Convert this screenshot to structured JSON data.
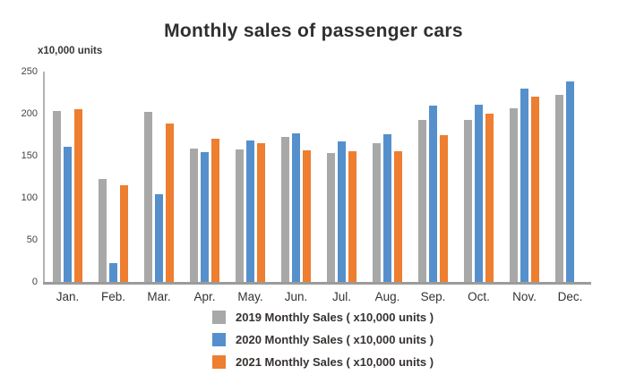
{
  "title": "Monthly sales of passenger cars",
  "y_axis_label": "x10,000 units",
  "colors": {
    "series_2019": "#a8a8a8",
    "series_2020": "#5590cc",
    "series_2021": "#ee7e30",
    "axis_line": "#9b9b9b"
  },
  "chart_data": {
    "type": "bar",
    "title": "Monthly sales of passenger cars",
    "ylabel": "x10,000 units",
    "xlabel": "",
    "categories": [
      "Jan.",
      "Feb.",
      "Mar.",
      "Apr.",
      "May.",
      "Jun.",
      "Jul.",
      "Aug.",
      "Sep.",
      "Oct.",
      "Nov.",
      "Dec."
    ],
    "series": [
      {
        "name": "2019 Monthly Sales ( x10,000 units )",
        "color": "#a8a8a8",
        "values": [
          203,
          122,
          202,
          158,
          157,
          172,
          153,
          165,
          193,
          193,
          206,
          222
        ]
      },
      {
        "name": "2020 Monthly Sales ( x10,000 units )",
        "color": "#5590cc",
        "values": [
          161,
          22,
          104,
          154,
          168,
          177,
          167,
          176,
          210,
          211,
          230,
          238
        ]
      },
      {
        "name": "2021 Monthly Sales ( x10,000 units )",
        "color": "#ee7e30",
        "values": [
          205,
          115,
          188,
          170,
          165,
          156,
          155,
          155,
          175,
          200,
          220,
          null
        ]
      }
    ],
    "ylim": [
      0,
      250
    ],
    "yticks": [
      0,
      50,
      100,
      150,
      200,
      250
    ],
    "grid": false,
    "legend_position": "bottom"
  }
}
